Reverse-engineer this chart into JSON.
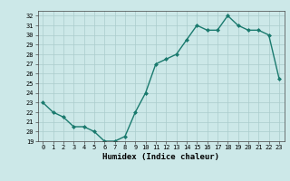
{
  "x": [
    0,
    1,
    2,
    3,
    4,
    5,
    6,
    7,
    8,
    9,
    10,
    11,
    12,
    13,
    14,
    15,
    16,
    17,
    18,
    19,
    20,
    21,
    22,
    23
  ],
  "y": [
    23,
    22,
    21.5,
    20.5,
    20.5,
    20,
    19,
    19,
    19.5,
    22,
    24,
    27,
    27.5,
    28,
    29.5,
    31,
    30.5,
    30.5,
    32,
    31,
    30.5,
    30.5,
    30,
    25.5
  ],
  "xlabel": "Humidex (Indice chaleur)",
  "ylabel": "",
  "ylim": [
    19,
    32.5
  ],
  "xlim": [
    -0.5,
    23.5
  ],
  "yticks": [
    19,
    20,
    21,
    22,
    23,
    24,
    25,
    26,
    27,
    28,
    29,
    30,
    31,
    32
  ],
  "xticks": [
    0,
    1,
    2,
    3,
    4,
    5,
    6,
    7,
    8,
    9,
    10,
    11,
    12,
    13,
    14,
    15,
    16,
    17,
    18,
    19,
    20,
    21,
    22,
    23
  ],
  "line_color": "#1a7a6e",
  "marker_color": "#1a7a6e",
  "bg_color": "#cce8e8",
  "grid_color": "#aacccc",
  "axes_bg": "#cce8e8"
}
